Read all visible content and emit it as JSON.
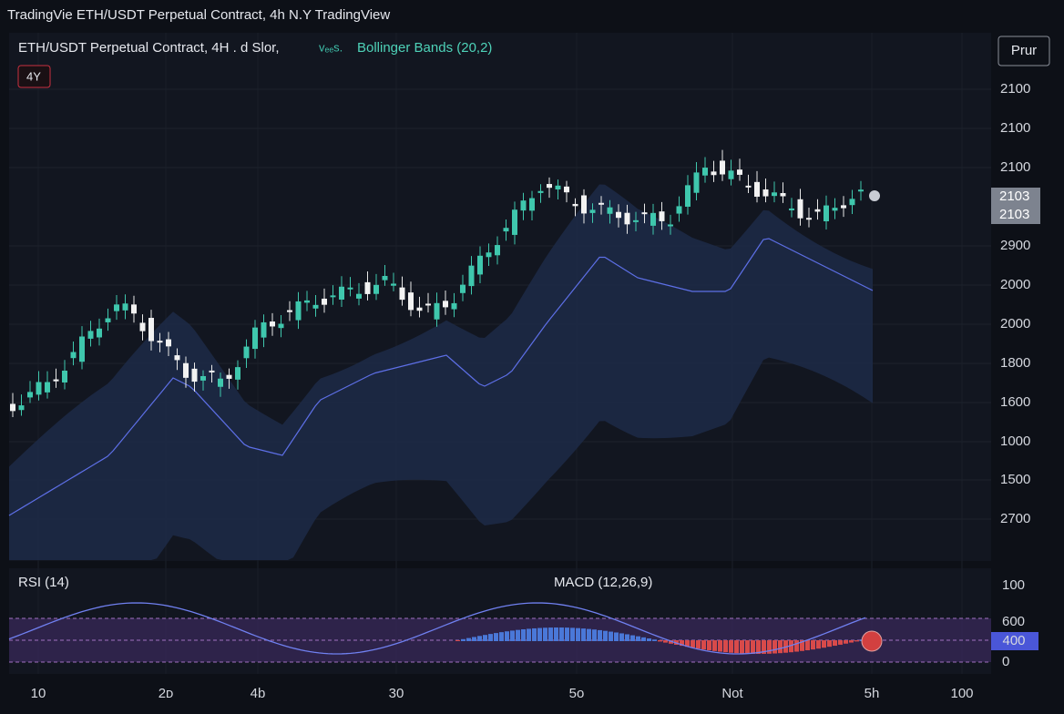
{
  "top_bar": {
    "title": "TradingVie ETH/USDT Perpetual Contract, 4h   N.Y  TradingView"
  },
  "legend": {
    "symbol": "ETH/USDT Perpetual Contract, 4H . d Slor,",
    "extra": "vₑₑs.",
    "indicator": "Bollinger Bands (20,2)"
  },
  "badge": "4Y",
  "button": "Prur",
  "price_axis": [
    "2100",
    "2100",
    "2100",
    "2900",
    "2000",
    "2000",
    "1800",
    "1600",
    "1000",
    "1500",
    "2700"
  ],
  "price_tags": [
    "2103",
    "2103"
  ],
  "lower_panel": {
    "rsi": "RSI (14)",
    "macd": "MACD (12,26,9)"
  },
  "lower_axis": [
    "100",
    "600",
    "0"
  ],
  "lower_tag": "400",
  "time_axis": [
    "10",
    "2ᴅ",
    "4b",
    "30",
    "5o",
    "Not",
    "5h",
    "100"
  ]
}
